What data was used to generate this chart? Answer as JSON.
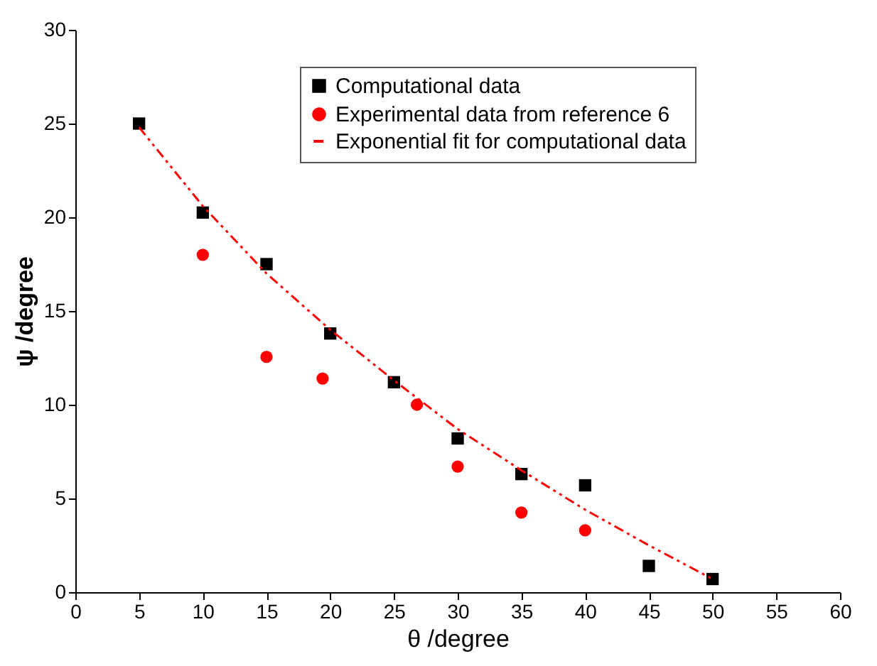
{
  "chart_data": {
    "type": "scatter",
    "xlabel": "θ /degree",
    "ylabel": "ψ /degree",
    "xlim": [
      0,
      60
    ],
    "xticks": [
      0,
      5,
      10,
      15,
      20,
      25,
      30,
      35,
      40,
      45,
      50,
      55,
      60
    ],
    "ylim": [
      0,
      30
    ],
    "yticks": [
      0,
      5,
      10,
      15,
      20,
      25,
      30
    ],
    "grid": false,
    "legend": "top right",
    "series": [
      {
        "name": "Computational data",
        "color": "#000000",
        "marker": "square",
        "x": [
          5,
          10,
          15,
          20,
          25,
          30,
          35,
          40,
          45,
          50
        ],
        "values": [
          25,
          20.25,
          17.5,
          13.8,
          11.2,
          8.2,
          6.3,
          5.7,
          1.4,
          0.7
        ]
      },
      {
        "name": "Experimental data from reference 6",
        "color": "#ff0000",
        "marker": "circle",
        "x": [
          10,
          15,
          19.4,
          26.8,
          30,
          35,
          40
        ],
        "values": [
          18,
          12.55,
          11.4,
          10,
          6.7,
          4.25,
          3.3
        ]
      },
      {
        "name": "Exponential fit for computational data",
        "type": "line",
        "color": "#ff0000",
        "line_style": "dashed",
        "marker": "none",
        "x": [
          5,
          10,
          15,
          20,
          25,
          30,
          35,
          40,
          45,
          50
        ],
        "values": [
          24.8,
          20.6,
          17.0,
          14.0,
          11.3,
          8.7,
          6.5,
          4.4,
          2.5,
          0.7
        ]
      }
    ]
  }
}
